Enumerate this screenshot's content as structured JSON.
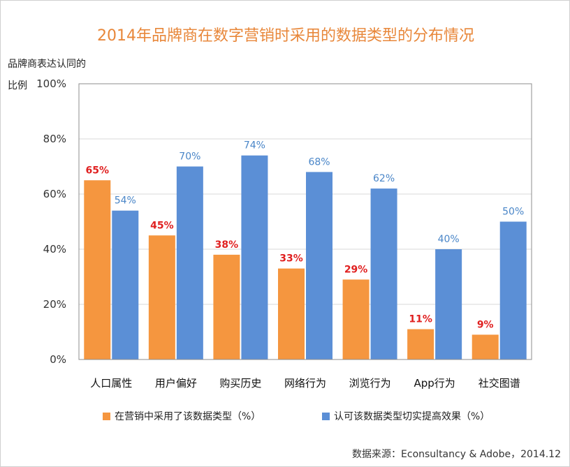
{
  "chart_data": {
    "type": "bar",
    "title": "2014年品牌商在数字营销时采用的数据类型的分布情况",
    "ylabel": [
      "品牌商表达认同的",
      "比例"
    ],
    "ylim": [
      0,
      100
    ],
    "yticks": [
      "0%",
      "20%",
      "40%",
      "60%",
      "80%",
      "100%"
    ],
    "ytick_values": [
      0,
      20,
      40,
      60,
      80,
      100
    ],
    "categories": [
      "人口属性",
      "用户偏好",
      "购买历史",
      "网络行为",
      "浏览行为",
      "App行为",
      "社交图谱"
    ],
    "series": [
      {
        "name": "在营销中采用了该数据类型（%）",
        "color": "#f5963f",
        "label_color": "#e02020",
        "values": [
          65,
          45,
          38,
          33,
          29,
          11,
          9
        ],
        "labels": [
          "65%",
          "45%",
          "38%",
          "33%",
          "29%",
          "11%",
          "9%"
        ]
      },
      {
        "name": "认可该数据类型切实提高效果（%）",
        "color": "#5b8fd6",
        "label_color": "#4a86c8",
        "values": [
          54,
          70,
          74,
          68,
          62,
          40,
          50
        ],
        "labels": [
          "54%",
          "70%",
          "74%",
          "68%",
          "62%",
          "40%",
          "50%"
        ]
      }
    ],
    "grid": true,
    "legend_position": "bottom"
  },
  "source": "数据来源：Econsultancy & Adobe，2014.12"
}
